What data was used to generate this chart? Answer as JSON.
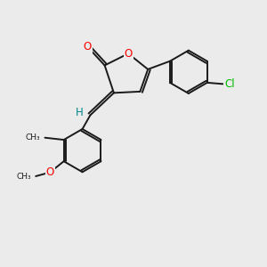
{
  "background_color": "#ebebeb",
  "bond_color": "#1a1a1a",
  "bond_width": 1.4,
  "atom_colors": {
    "O": "#ff0000",
    "Cl": "#00bb00",
    "H": "#008888",
    "C": "#1a1a1a"
  },
  "font_size_atoms": 8.5,
  "fig_size": [
    3.0,
    3.0
  ],
  "dpi": 100
}
